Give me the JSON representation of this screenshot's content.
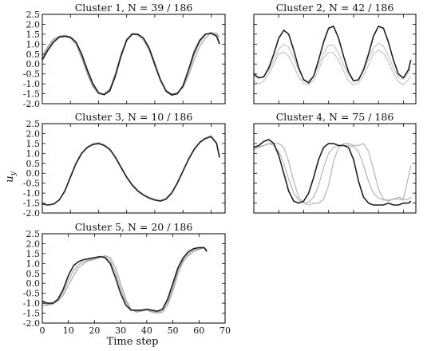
{
  "figure": {
    "ylabel": "u",
    "ylabel_sub": "y",
    "xlabel": "Time step"
  },
  "chart_data": [
    {
      "type": "line",
      "title": "Cluster 1, N = 39 / 186",
      "ylim": [
        -2.0,
        2.5
      ],
      "xlim": [
        0,
        65
      ],
      "yticks": [
        "2.5",
        "2.0",
        "1.5",
        "1.0",
        "0.5",
        "0.0",
        "-0.5",
        "-1.0",
        "-1.5",
        "-2.0"
      ],
      "xticks": [],
      "grid": false,
      "colors": {
        "mean": "#1f1f1f",
        "member": "#9a9a9a"
      },
      "series": [
        {
          "x": [
            0,
            2,
            4,
            6,
            8,
            10,
            12,
            14,
            16,
            18,
            20,
            22,
            24,
            26,
            28,
            30,
            32,
            34,
            36,
            38,
            40,
            42,
            44,
            46,
            48,
            50,
            52,
            54,
            56,
            58,
            60,
            62,
            63
          ],
          "values": [
            0.2,
            0.7,
            1.1,
            1.35,
            1.4,
            1.35,
            1.1,
            0.5,
            -0.3,
            -1.0,
            -1.45,
            -1.55,
            -1.35,
            -0.6,
            0.4,
            1.2,
            1.5,
            1.5,
            1.3,
            0.8,
            0.0,
            -0.8,
            -1.35,
            -1.55,
            -1.5,
            -1.1,
            -0.3,
            0.6,
            1.2,
            1.5,
            1.55,
            1.4,
            1.0
          ]
        },
        {
          "x": [
            0,
            2,
            4,
            6,
            8,
            10,
            12,
            14,
            16,
            18,
            20,
            22,
            24,
            26,
            28,
            30,
            32,
            34,
            36,
            38,
            40,
            42,
            44,
            46,
            48,
            50,
            52,
            54,
            56,
            58,
            60,
            62,
            63
          ],
          "values": [
            0.4,
            0.9,
            1.25,
            1.4,
            1.4,
            1.3,
            1.0,
            0.3,
            -0.5,
            -1.15,
            -1.5,
            -1.5,
            -1.25,
            -0.45,
            0.5,
            1.25,
            1.5,
            1.45,
            1.2,
            0.7,
            -0.1,
            -0.85,
            -1.35,
            -1.5,
            -1.45,
            -1.2,
            -0.6,
            0.2,
            0.9,
            1.3,
            1.55,
            1.55,
            1.35
          ]
        },
        {
          "x": [
            0,
            2,
            4,
            6,
            8,
            10,
            12,
            14,
            16,
            18,
            20,
            22,
            24,
            26,
            28,
            30,
            32,
            34,
            36,
            38,
            40,
            42,
            44,
            46,
            48,
            50,
            52,
            54,
            56,
            58,
            60,
            62,
            63
          ],
          "values": [
            0.3,
            0.8,
            1.2,
            1.4,
            1.45,
            1.35,
            1.05,
            0.4,
            -0.4,
            -1.1,
            -1.5,
            -1.55,
            -1.3,
            -0.5,
            0.45,
            1.25,
            1.55,
            1.5,
            1.3,
            0.75,
            -0.05,
            -0.85,
            -1.4,
            -1.6,
            -1.5,
            -1.15,
            -0.4,
            0.45,
            1.1,
            1.45,
            1.6,
            1.45,
            1.1
          ]
        }
      ]
    },
    {
      "type": "line",
      "title": "Cluster 2, N = 42 / 186",
      "ylim": [
        -2.0,
        2.5
      ],
      "xlim": [
        0,
        65
      ],
      "yticks": [
        "2.5",
        "2.0",
        "1.5",
        "1.0",
        "0.5",
        "0.0",
        "-0.5",
        "-1.0",
        "-1.5",
        "-2.0"
      ],
      "xticks": [],
      "grid": false,
      "colors": {
        "mean": "#1f1f1f",
        "member": "#bdbdbd"
      },
      "series": [
        {
          "x": [
            0,
            2,
            4,
            6,
            8,
            10,
            12,
            14,
            16,
            18,
            20,
            22,
            24,
            26,
            28,
            30,
            32,
            34,
            36,
            38,
            40,
            42,
            44,
            46,
            48,
            50,
            52,
            54,
            56,
            58,
            60,
            62,
            63
          ],
          "values": [
            -0.5,
            -0.7,
            -0.65,
            -0.2,
            0.5,
            1.3,
            1.7,
            1.5,
            0.7,
            -0.2,
            -0.8,
            -0.95,
            -0.6,
            0.2,
            1.1,
            1.8,
            1.9,
            1.3,
            0.4,
            -0.4,
            -0.85,
            -0.8,
            -0.3,
            0.5,
            1.4,
            1.9,
            1.8,
            1.1,
            0.2,
            -0.5,
            -0.7,
            -0.3,
            0.2
          ]
        },
        {
          "x": [
            0,
            2,
            4,
            6,
            8,
            10,
            12,
            14,
            16,
            18,
            20,
            22,
            24,
            26,
            28,
            30,
            32,
            34,
            36,
            38,
            40,
            42,
            44,
            46,
            48,
            50,
            52,
            54,
            56,
            58,
            60,
            62,
            63
          ],
          "values": [
            -0.85,
            -1.0,
            -0.85,
            -0.5,
            0.0,
            0.5,
            0.6,
            0.4,
            -0.1,
            -0.65,
            -1.0,
            -1.05,
            -0.8,
            -0.3,
            0.3,
            0.6,
            0.55,
            0.2,
            -0.35,
            -0.85,
            -1.05,
            -0.95,
            -0.6,
            -0.05,
            0.5,
            0.7,
            0.55,
            0.1,
            -0.45,
            -0.9,
            -1.05,
            -0.8,
            -0.6
          ]
        },
        {
          "x": [
            0,
            2,
            4,
            6,
            8,
            10,
            12,
            14,
            16,
            18,
            20,
            22,
            24,
            26,
            28,
            30,
            32,
            34,
            36,
            38,
            40,
            42,
            44,
            46,
            48,
            50,
            52,
            54,
            56,
            58,
            60,
            62,
            63
          ],
          "values": [
            -0.6,
            -0.7,
            -0.6,
            -0.3,
            0.2,
            0.75,
            1.0,
            0.85,
            0.3,
            -0.3,
            -0.75,
            -0.85,
            -0.6,
            -0.05,
            0.55,
            0.95,
            0.95,
            0.55,
            -0.05,
            -0.55,
            -0.85,
            -0.75,
            -0.35,
            0.25,
            0.8,
            1.05,
            0.9,
            0.4,
            -0.2,
            -0.65,
            -0.75,
            -0.45,
            -0.2
          ]
        }
      ]
    },
    {
      "type": "line",
      "title": "Cluster 3, N = 10 / 186",
      "ylim": [
        -2.0,
        2.5
      ],
      "xlim": [
        0,
        65
      ],
      "yticks": [
        "2.5",
        "2.0",
        "1.5",
        "1.0",
        "0.5",
        "0.0",
        "-0.5",
        "-1.0",
        "-1.5",
        "-2.0"
      ],
      "xticks": [],
      "grid": false,
      "colors": {
        "mean": "#1f1f1f",
        "member": "#bdbdbd"
      },
      "series": [
        {
          "x": [
            0,
            2,
            4,
            6,
            8,
            10,
            12,
            14,
            16,
            18,
            20,
            22,
            24,
            26,
            28,
            30,
            32,
            34,
            36,
            38,
            40,
            42,
            44,
            46,
            48,
            50,
            52,
            54,
            56,
            58,
            60,
            62,
            63
          ],
          "values": [
            -1.55,
            -1.6,
            -1.55,
            -1.35,
            -0.9,
            -0.2,
            0.5,
            1.0,
            1.3,
            1.45,
            1.5,
            1.4,
            1.2,
            0.8,
            0.3,
            -0.2,
            -0.6,
            -0.9,
            -1.1,
            -1.25,
            -1.35,
            -1.4,
            -1.3,
            -1.0,
            -0.5,
            0.1,
            0.7,
            1.2,
            1.55,
            1.75,
            1.85,
            1.5,
            0.8
          ]
        },
        {
          "x": [
            0,
            2,
            4,
            6,
            8,
            10,
            12,
            14,
            16,
            18,
            20,
            22,
            24,
            26,
            28,
            30,
            32,
            34,
            36,
            38,
            40,
            42,
            44,
            46,
            48,
            50,
            52,
            54,
            56,
            58,
            60,
            62,
            63
          ],
          "values": [
            -1.55,
            -1.6,
            -1.55,
            -1.35,
            -0.85,
            -0.15,
            0.55,
            1.05,
            1.35,
            1.5,
            1.55,
            1.45,
            1.25,
            0.85,
            0.35,
            -0.15,
            -0.55,
            -0.85,
            -1.05,
            -1.2,
            -1.3,
            -1.35,
            -1.25,
            -0.95,
            -0.45,
            0.15,
            0.75,
            1.25,
            1.6,
            1.8,
            1.9,
            1.55,
            0.85
          ]
        }
      ]
    },
    {
      "type": "line",
      "title": "Cluster 4, N = 75 / 186",
      "ylim": [
        -2.0,
        2.5
      ],
      "xlim": [
        0,
        65
      ],
      "yticks": [
        "2.5",
        "2.0",
        "1.5",
        "1.0",
        "0.5",
        "0.0",
        "-0.5",
        "-1.0",
        "-1.5",
        "-2.0"
      ],
      "xticks": [],
      "grid": false,
      "colors": {
        "mean": "#1f1f1f",
        "member": "#a8a8a8"
      },
      "series": [
        {
          "x": [
            0,
            2,
            4,
            6,
            8,
            10,
            12,
            14,
            16,
            18,
            20,
            22,
            24,
            26,
            28,
            30,
            32,
            34,
            36,
            38,
            40,
            42,
            44,
            46,
            48,
            50,
            52,
            54,
            56,
            58,
            60,
            62,
            63
          ],
          "values": [
            1.3,
            1.4,
            1.6,
            1.7,
            1.5,
            0.9,
            0.0,
            -0.9,
            -1.4,
            -1.5,
            -1.4,
            -1.0,
            -0.2,
            0.7,
            1.3,
            1.5,
            1.5,
            1.4,
            1.4,
            1.3,
            0.7,
            -0.4,
            -1.2,
            -1.5,
            -1.6,
            -1.6,
            -1.6,
            -1.5,
            -1.6,
            -1.6,
            -1.5,
            -1.5,
            -1.4
          ]
        },
        {
          "x": [
            0,
            2,
            4,
            6,
            8,
            10,
            12,
            14,
            16,
            18,
            20,
            22,
            24,
            26,
            28,
            30,
            32,
            34,
            36,
            38,
            40,
            42,
            44,
            46,
            48,
            50,
            52,
            54,
            56,
            58,
            60,
            62,
            63
          ],
          "values": [
            1.2,
            1.3,
            1.4,
            1.5,
            1.5,
            1.5,
            1.3,
            0.6,
            -0.4,
            -1.2,
            -1.5,
            -1.6,
            -1.5,
            -1.5,
            -1.3,
            -0.6,
            0.6,
            1.3,
            1.5,
            1.5,
            1.4,
            1.4,
            1.5,
            1.1,
            0.2,
            -0.8,
            -1.3,
            -1.4,
            -1.3,
            -1.2,
            -1.3,
            -0.2,
            0.4
          ]
        },
        {
          "x": [
            0,
            2,
            4,
            6,
            8,
            10,
            12,
            14,
            16,
            18,
            20,
            22,
            24,
            26,
            28,
            30,
            32,
            34,
            36,
            38,
            40,
            42,
            44,
            46,
            48,
            50,
            52,
            54,
            56,
            58,
            60,
            62,
            63
          ],
          "values": [
            1.3,
            1.35,
            1.4,
            1.5,
            1.4,
            1.1,
            0.5,
            -0.3,
            -1.0,
            -1.35,
            -1.5,
            -1.45,
            -1.2,
            -0.6,
            0.3,
            1.0,
            1.3,
            1.4,
            1.4,
            1.4,
            1.35,
            1.1,
            0.4,
            -0.4,
            -1.0,
            -1.25,
            -1.35,
            -1.35,
            -1.3,
            -1.3,
            -1.35,
            -1.3,
            -1.2
          ]
        }
      ]
    },
    {
      "type": "line",
      "title": "Cluster 5, N = 20 / 186",
      "ylim": [
        -2.0,
        2.5
      ],
      "xlim": [
        0,
        70
      ],
      "yticks": [
        "2.5",
        "2.0",
        "1.5",
        "1.0",
        "0.5",
        "0.0",
        "-0.5",
        "-1.0",
        "-1.5",
        "-2.0"
      ],
      "xticks": [
        "0",
        "10",
        "20",
        "30",
        "40",
        "50",
        "60",
        "70"
      ],
      "grid": false,
      "colors": {
        "mean": "#1f1f1f",
        "member": "#9a9a9a"
      },
      "series": [
        {
          "x": [
            0,
            2,
            4,
            6,
            8,
            10,
            12,
            14,
            16,
            18,
            20,
            22,
            24,
            26,
            28,
            30,
            32,
            34,
            36,
            38,
            40,
            42,
            44,
            46,
            48,
            50,
            52,
            54,
            56,
            58,
            60,
            62,
            63
          ],
          "values": [
            -0.9,
            -1.0,
            -1.0,
            -0.8,
            -0.3,
            0.4,
            0.9,
            1.1,
            1.2,
            1.25,
            1.3,
            1.35,
            1.3,
            1.0,
            0.3,
            -0.5,
            -1.1,
            -1.35,
            -1.35,
            -1.35,
            -1.3,
            -1.35,
            -1.4,
            -1.3,
            -0.8,
            0.0,
            0.8,
            1.3,
            1.6,
            1.75,
            1.8,
            1.8,
            1.6
          ]
        },
        {
          "x": [
            0,
            2,
            4,
            6,
            8,
            10,
            12,
            14,
            16,
            18,
            20,
            22,
            24,
            26,
            28,
            30,
            32,
            34,
            36,
            38,
            40,
            42,
            44,
            46,
            48,
            50,
            52,
            54,
            56,
            58,
            60,
            62,
            63
          ],
          "values": [
            -1.1,
            -1.1,
            -1.05,
            -0.9,
            -0.6,
            -0.1,
            0.4,
            0.8,
            1.0,
            1.15,
            1.2,
            1.3,
            1.4,
            1.3,
            0.8,
            0.0,
            -0.8,
            -1.3,
            -1.45,
            -1.4,
            -1.35,
            -1.45,
            -1.5,
            -1.45,
            -1.1,
            -0.4,
            0.5,
            1.1,
            1.4,
            1.6,
            1.7,
            1.8,
            1.7
          ]
        },
        {
          "x": [
            0,
            2,
            4,
            6,
            8,
            10,
            12,
            14,
            16,
            18,
            20,
            22,
            24,
            26,
            28,
            30,
            32,
            34,
            36,
            38,
            40,
            42,
            44,
            46,
            48,
            50,
            52,
            54,
            56,
            58,
            60,
            62,
            63
          ],
          "values": [
            -1.0,
            -1.05,
            -1.0,
            -0.85,
            -0.45,
            0.15,
            0.65,
            0.95,
            1.1,
            1.2,
            1.25,
            1.32,
            1.35,
            1.15,
            0.55,
            -0.25,
            -0.95,
            -1.32,
            -1.4,
            -1.38,
            -1.33,
            -1.4,
            -1.45,
            -1.38,
            -0.95,
            -0.2,
            0.65,
            1.2,
            1.5,
            1.68,
            1.75,
            1.8,
            1.65
          ]
        }
      ]
    }
  ]
}
